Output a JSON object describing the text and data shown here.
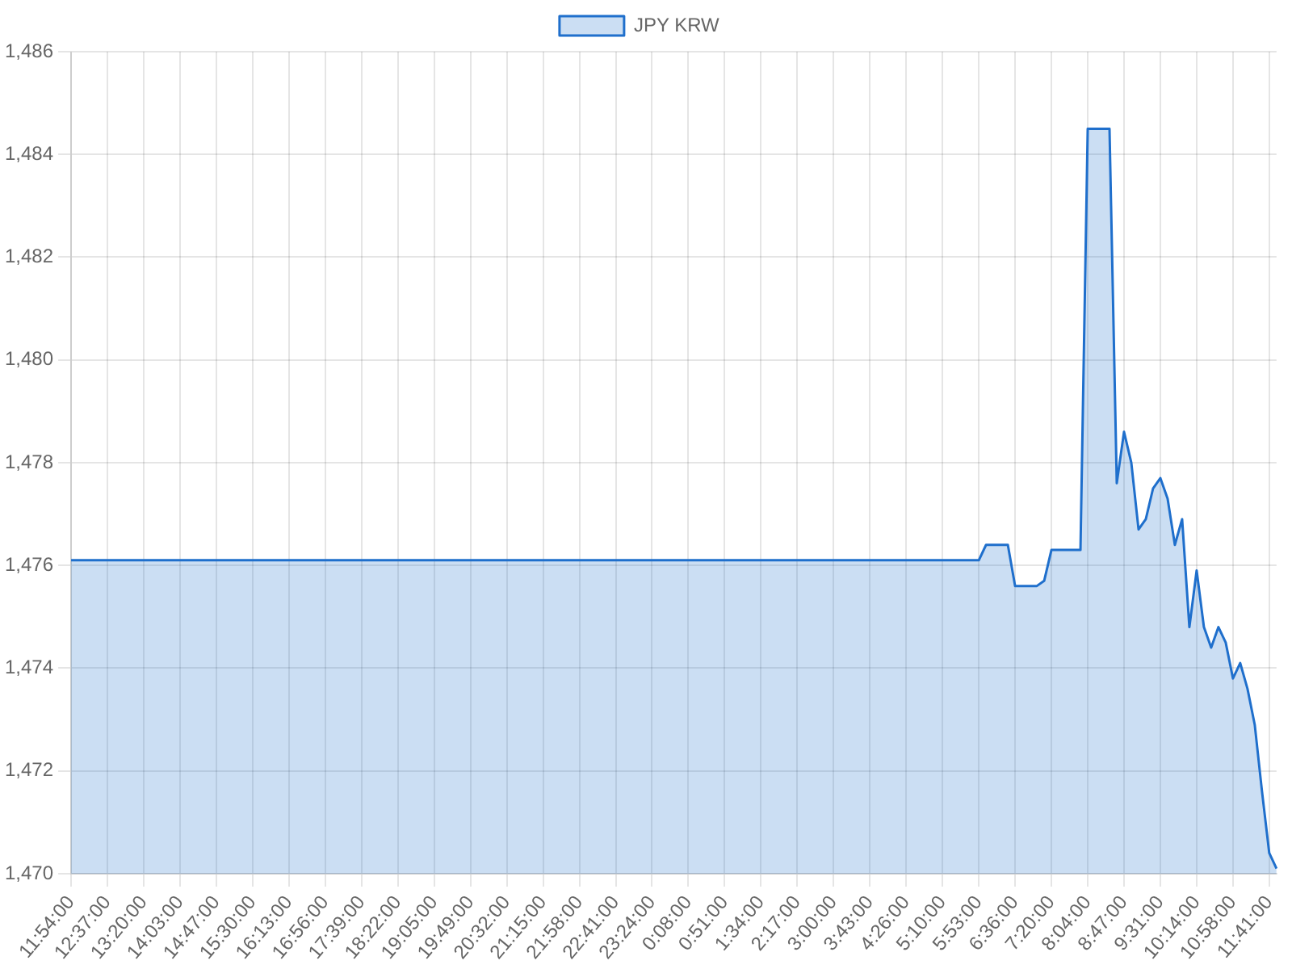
{
  "chart_data": {
    "type": "area",
    "legend": "top",
    "grid": true,
    "marker": "none",
    "categories": [
      "11:54:00",
      null,
      null,
      null,
      null,
      "12:37:00",
      null,
      null,
      null,
      null,
      "13:20:00",
      null,
      null,
      null,
      null,
      "14:03:00",
      null,
      null,
      null,
      null,
      "14:47:00",
      null,
      null,
      null,
      null,
      "15:30:00",
      null,
      null,
      null,
      null,
      "16:13:00",
      null,
      null,
      null,
      null,
      "16:56:00",
      null,
      null,
      null,
      null,
      "17:39:00",
      null,
      null,
      null,
      null,
      "18:22:00",
      null,
      null,
      null,
      null,
      "19:05:00",
      null,
      null,
      null,
      null,
      "19:49:00",
      null,
      null,
      null,
      null,
      "20:32:00",
      null,
      null,
      null,
      null,
      "21:15:00",
      null,
      null,
      null,
      null,
      "21:58:00",
      null,
      null,
      null,
      null,
      "22:41:00",
      null,
      null,
      null,
      null,
      "23:24:00",
      null,
      null,
      null,
      null,
      "0:08:00",
      null,
      null,
      null,
      null,
      "0:51:00",
      null,
      null,
      null,
      null,
      "1:34:00",
      null,
      null,
      null,
      null,
      "2:17:00",
      null,
      null,
      null,
      null,
      "3:00:00",
      null,
      null,
      null,
      null,
      "3:43:00",
      null,
      null,
      null,
      null,
      "4:26:00",
      null,
      null,
      null,
      null,
      "5:10:00",
      null,
      null,
      null,
      null,
      "5:53:00",
      null,
      null,
      null,
      null,
      "6:36:00",
      null,
      null,
      null,
      null,
      "7:20:00",
      null,
      null,
      null,
      null,
      "8:04:00",
      null,
      null,
      null,
      null,
      "8:47:00",
      null,
      null,
      null,
      null,
      "9:31:00",
      null,
      null,
      null,
      null,
      "10:14:00",
      null,
      null,
      null,
      null,
      "10:58:00",
      null,
      null,
      null,
      null,
      "11:41:00",
      null
    ],
    "ylim": [
      1470,
      1486
    ],
    "yticks": [
      {
        "value": 1470,
        "label": "1,470"
      },
      {
        "value": 1472,
        "label": "1,472"
      },
      {
        "value": 1474,
        "label": "1,474"
      },
      {
        "value": 1476,
        "label": "1,476"
      },
      {
        "value": 1478,
        "label": "1,478"
      },
      {
        "value": 1480,
        "label": "1,480"
      },
      {
        "value": 1482,
        "label": "1,482"
      },
      {
        "value": 1484,
        "label": "1,484"
      },
      {
        "value": 1486,
        "label": "1,486"
      }
    ],
    "series": [
      {
        "name": "JPY KRW",
        "color": "#1f6fcc",
        "values": [
          1476.1,
          1476.1,
          1476.1,
          1476.1,
          1476.1,
          1476.1,
          1476.1,
          1476.1,
          1476.1,
          1476.1,
          1476.1,
          1476.1,
          1476.1,
          1476.1,
          1476.1,
          1476.1,
          1476.1,
          1476.1,
          1476.1,
          1476.1,
          1476.1,
          1476.1,
          1476.1,
          1476.1,
          1476.1,
          1476.1,
          1476.1,
          1476.1,
          1476.1,
          1476.1,
          1476.1,
          1476.1,
          1476.1,
          1476.1,
          1476.1,
          1476.1,
          1476.1,
          1476.1,
          1476.1,
          1476.1,
          1476.1,
          1476.1,
          1476.1,
          1476.1,
          1476.1,
          1476.1,
          1476.1,
          1476.1,
          1476.1,
          1476.1,
          1476.1,
          1476.1,
          1476.1,
          1476.1,
          1476.1,
          1476.1,
          1476.1,
          1476.1,
          1476.1,
          1476.1,
          1476.1,
          1476.1,
          1476.1,
          1476.1,
          1476.1,
          1476.1,
          1476.1,
          1476.1,
          1476.1,
          1476.1,
          1476.1,
          1476.1,
          1476.1,
          1476.1,
          1476.1,
          1476.1,
          1476.1,
          1476.1,
          1476.1,
          1476.1,
          1476.1,
          1476.1,
          1476.1,
          1476.1,
          1476.1,
          1476.1,
          1476.1,
          1476.1,
          1476.1,
          1476.1,
          1476.1,
          1476.1,
          1476.1,
          1476.1,
          1476.1,
          1476.1,
          1476.1,
          1476.1,
          1476.1,
          1476.1,
          1476.1,
          1476.1,
          1476.1,
          1476.1,
          1476.1,
          1476.1,
          1476.1,
          1476.1,
          1476.1,
          1476.1,
          1476.1,
          1476.1,
          1476.1,
          1476.1,
          1476.1,
          1476.1,
          1476.1,
          1476.1,
          1476.1,
          1476.1,
          1476.1,
          1476.1,
          1476.1,
          1476.1,
          1476.1,
          1476.1,
          1476.4,
          1476.4,
          1476.4,
          1476.4,
          1475.6,
          1475.6,
          1475.6,
          1475.6,
          1475.7,
          1476.3,
          1476.3,
          1476.3,
          1476.3,
          1476.3,
          1484.5,
          1484.5,
          1484.5,
          1484.5,
          1477.6,
          1478.6,
          1478.0,
          1476.7,
          1476.9,
          1477.5,
          1477.7,
          1477.3,
          1476.4,
          1476.9,
          1474.8,
          1475.9,
          1474.8,
          1474.4,
          1474.8,
          1474.5,
          1473.8,
          1474.1,
          1473.6,
          1472.9,
          1471.6,
          1470.4,
          1470.1
        ]
      }
    ]
  }
}
